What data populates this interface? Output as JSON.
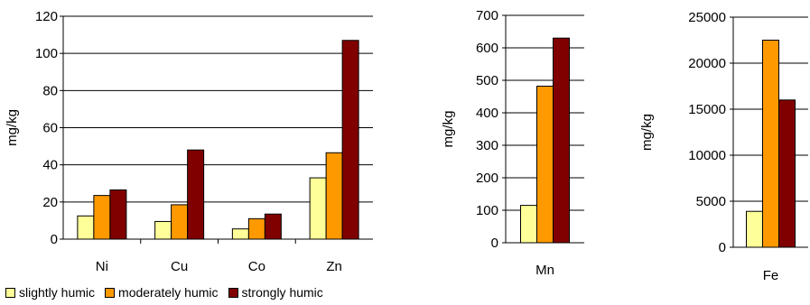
{
  "chart_data": [
    {
      "type": "bar",
      "categories": [
        "Ni",
        "Cu",
        "Co",
        "Zn"
      ],
      "ylabel": "mg/kg",
      "ylim": [
        0,
        120
      ],
      "yticks": [
        0,
        20,
        40,
        60,
        80,
        100,
        120
      ],
      "grid": true,
      "series": [
        {
          "name": "slightly humic",
          "color": "#ffff99",
          "values": [
            12.5,
            9.5,
            5.5,
            33
          ]
        },
        {
          "name": "moderately humic",
          "color": "#ff9900",
          "values": [
            23.5,
            18.5,
            11,
            46.5
          ]
        },
        {
          "name": "strongly humic",
          "color": "#800000",
          "values": [
            26.5,
            48,
            13.5,
            107
          ]
        }
      ]
    },
    {
      "type": "bar",
      "categories": [
        "Mn"
      ],
      "ylabel": "mg/kg",
      "ylim": [
        0,
        700
      ],
      "yticks": [
        0,
        100,
        200,
        300,
        400,
        500,
        600,
        700
      ],
      "grid": true,
      "series": [
        {
          "name": "slightly humic",
          "color": "#ffff99",
          "values": [
            115
          ]
        },
        {
          "name": "moderately humic",
          "color": "#ff9900",
          "values": [
            482
          ]
        },
        {
          "name": "strongly humic",
          "color": "#800000",
          "values": [
            630
          ]
        }
      ]
    },
    {
      "type": "bar",
      "categories": [
        "Fe"
      ],
      "ylabel": "mg/kg",
      "ylim": [
        0,
        25000
      ],
      "yticks": [
        0,
        5000,
        10000,
        15000,
        20000,
        25000
      ],
      "grid": true,
      "series": [
        {
          "name": "slightly humic",
          "color": "#ffff99",
          "values": [
            3900
          ]
        },
        {
          "name": "moderately humic",
          "color": "#ff9900",
          "values": [
            22500
          ]
        },
        {
          "name": "strongly humic",
          "color": "#800000",
          "values": [
            16000
          ]
        }
      ]
    }
  ],
  "legend": {
    "placement": "bottom-left",
    "items": [
      {
        "label": "slightly humic",
        "color": "#ffff99"
      },
      {
        "label": "moderately humic",
        "color": "#ff9900"
      },
      {
        "label": "strongly humic",
        "color": "#800000"
      }
    ]
  }
}
